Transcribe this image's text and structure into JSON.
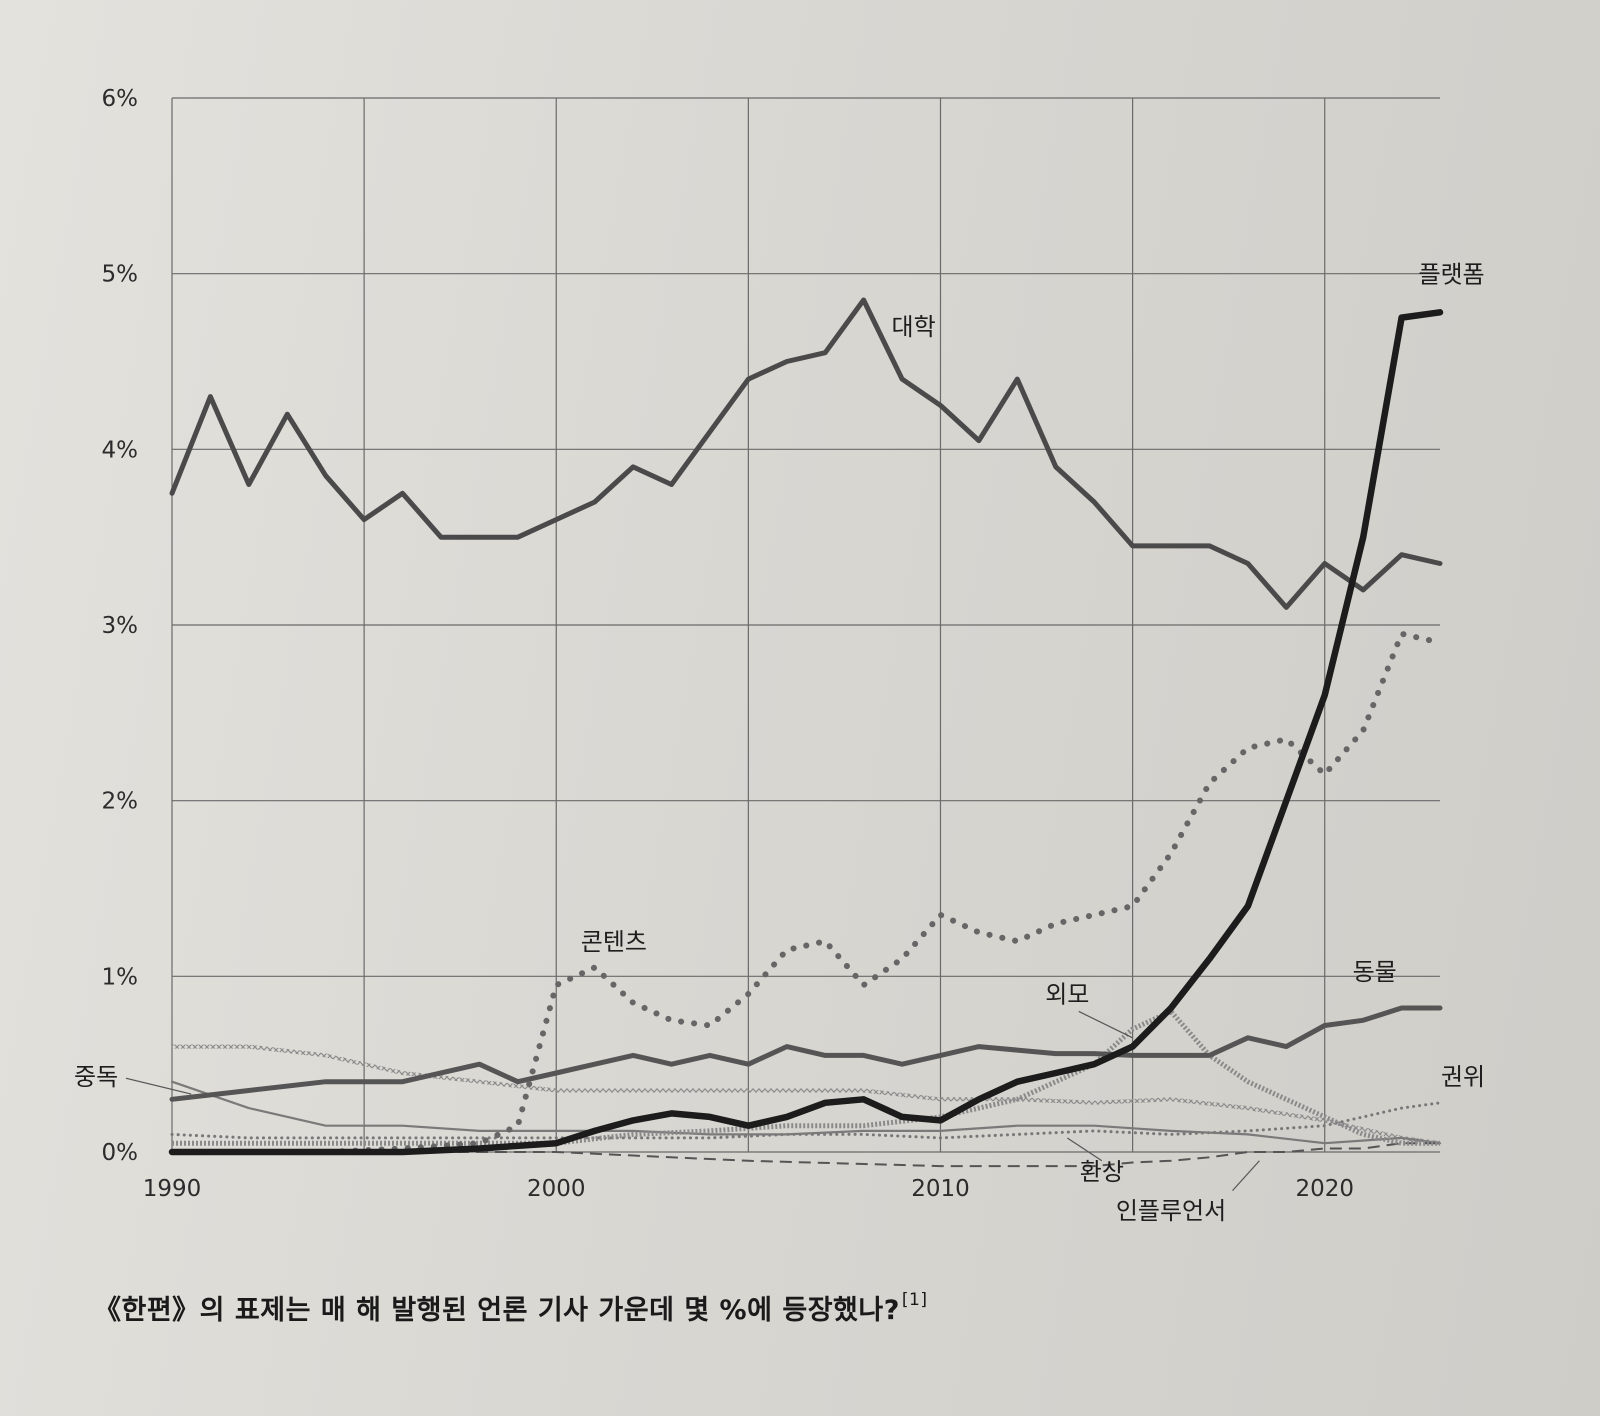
{
  "caption": {
    "text": "《한편》의 표제는 매 해 발행된 언론 기사 가운데 몇 %에 등장했나?",
    "footnote": "[1]"
  },
  "chart_data": {
    "type": "line",
    "title": "",
    "xlabel": "",
    "ylabel": "",
    "xlim": [
      1990,
      2023
    ],
    "ylim": [
      0,
      6
    ],
    "x_ticks": [
      1990,
      2000,
      2010,
      2020
    ],
    "x_tick_labels": [
      "1990",
      "2000",
      "2010",
      "2020"
    ],
    "y_ticks": [
      0,
      1,
      2,
      3,
      4,
      5,
      6
    ],
    "y_tick_labels": [
      "0%",
      "1%",
      "2%",
      "3%",
      "4%",
      "5%",
      "6%"
    ],
    "grid": true,
    "series": [
      {
        "name": "대학",
        "style": "solid",
        "color": "#4a4a4a",
        "x": [
          1990,
          1991,
          1992,
          1993,
          1994,
          1995,
          1996,
          1997,
          1998,
          1999,
          2000,
          2001,
          2002,
          2003,
          2004,
          2005,
          2006,
          2007,
          2008,
          2009,
          2010,
          2011,
          2012,
          2013,
          2014,
          2015,
          2016,
          2017,
          2018,
          2019,
          2020,
          2021,
          2022,
          2023
        ],
        "values": [
          3.75,
          4.3,
          3.8,
          4.2,
          3.85,
          3.6,
          3.75,
          3.5,
          3.5,
          3.5,
          3.6,
          3.7,
          3.9,
          3.8,
          4.1,
          4.4,
          4.5,
          4.55,
          4.85,
          4.4,
          4.25,
          4.05,
          4.4,
          3.9,
          3.7,
          3.45,
          3.45,
          3.45,
          3.35,
          3.1,
          3.35,
          3.2,
          3.4,
          3.35
        ]
      },
      {
        "name": "플랫폼",
        "style": "solid-bold",
        "color": "#1c1c1c",
        "x": [
          1990,
          1992,
          1994,
          1996,
          1998,
          2000,
          2001,
          2002,
          2003,
          2004,
          2005,
          2006,
          2007,
          2008,
          2009,
          2010,
          2011,
          2012,
          2013,
          2014,
          2015,
          2016,
          2017,
          2018,
          2019,
          2020,
          2021,
          2022,
          2023
        ],
        "values": [
          0.0,
          0.0,
          0.0,
          0.0,
          0.02,
          0.05,
          0.12,
          0.18,
          0.22,
          0.2,
          0.15,
          0.2,
          0.28,
          0.3,
          0.2,
          0.18,
          0.3,
          0.4,
          0.45,
          0.5,
          0.6,
          0.82,
          1.1,
          1.4,
          2.0,
          2.6,
          3.5,
          4.75,
          4.78
        ]
      },
      {
        "name": "콘텐츠",
        "style": "dotted-bold",
        "color": "#666666",
        "x": [
          1990,
          1992,
          1994,
          1996,
          1998,
          1999,
          2000,
          2001,
          2002,
          2003,
          2004,
          2005,
          2006,
          2007,
          2008,
          2009,
          2010,
          2011,
          2012,
          2013,
          2014,
          2015,
          2016,
          2017,
          2018,
          2019,
          2020,
          2021,
          2022,
          2023
        ],
        "values": [
          0.0,
          0.0,
          0.0,
          0.02,
          0.05,
          0.15,
          0.95,
          1.05,
          0.85,
          0.75,
          0.72,
          0.9,
          1.15,
          1.2,
          0.95,
          1.1,
          1.35,
          1.25,
          1.2,
          1.3,
          1.35,
          1.4,
          1.7,
          2.1,
          2.3,
          2.35,
          2.15,
          2.4,
          2.95,
          2.9
        ]
      },
      {
        "name": "동물",
        "style": "solid",
        "color": "#555555",
        "x": [
          1990,
          1992,
          1994,
          1996,
          1998,
          1999,
          2000,
          2001,
          2002,
          2003,
          2004,
          2005,
          2006,
          2007,
          2008,
          2009,
          2010,
          2011,
          2012,
          2013,
          2014,
          2015,
          2016,
          2017,
          2018,
          2019,
          2020,
          2021,
          2022,
          2023
        ],
        "values": [
          0.3,
          0.35,
          0.4,
          0.4,
          0.5,
          0.4,
          0.45,
          0.5,
          0.55,
          0.5,
          0.55,
          0.5,
          0.6,
          0.55,
          0.55,
          0.5,
          0.55,
          0.6,
          0.58,
          0.56,
          0.56,
          0.55,
          0.55,
          0.55,
          0.65,
          0.6,
          0.72,
          0.75,
          0.82,
          0.82
        ]
      },
      {
        "name": "외모",
        "style": "wavy",
        "color": "#8a8a8a",
        "x": [
          1990,
          1992,
          1994,
          1996,
          1998,
          2000,
          2002,
          2004,
          2006,
          2008,
          2010,
          2012,
          2014,
          2015,
          2016,
          2017,
          2018,
          2019,
          2020,
          2021,
          2022,
          2023
        ],
        "values": [
          0.05,
          0.05,
          0.05,
          0.05,
          0.05,
          0.05,
          0.1,
          0.12,
          0.15,
          0.15,
          0.2,
          0.3,
          0.5,
          0.7,
          0.8,
          0.55,
          0.4,
          0.3,
          0.2,
          0.1,
          0.05,
          0.05
        ]
      },
      {
        "name": "중독",
        "style": "solid-thin",
        "color": "#7a7a7a",
        "x": [
          1990,
          1992,
          1994,
          1996,
          1998,
          2000,
          2002,
          2004,
          2006,
          2008,
          2010,
          2012,
          2014,
          2016,
          2018,
          2020,
          2022,
          2023
        ],
        "values": [
          0.4,
          0.25,
          0.15,
          0.15,
          0.12,
          0.12,
          0.12,
          0.1,
          0.1,
          0.12,
          0.12,
          0.15,
          0.15,
          0.12,
          0.1,
          0.05,
          0.08,
          0.05
        ]
      },
      {
        "name": "권위",
        "style": "dotted",
        "color": "#777777",
        "x": [
          1990,
          1992,
          1994,
          1996,
          1998,
          2000,
          2002,
          2004,
          2006,
          2008,
          2010,
          2012,
          2014,
          2016,
          2018,
          2020,
          2022,
          2023
        ],
        "values": [
          0.1,
          0.08,
          0.08,
          0.08,
          0.08,
          0.08,
          0.08,
          0.08,
          0.1,
          0.1,
          0.08,
          0.1,
          0.12,
          0.1,
          0.12,
          0.15,
          0.25,
          0.28
        ]
      },
      {
        "name": "환상",
        "style": "crosshatch",
        "color": "#8c8c8c",
        "x": [
          1990,
          1992,
          1994,
          1996,
          1998,
          2000,
          2002,
          2004,
          2006,
          2008,
          2010,
          2012,
          2014,
          2016,
          2018,
          2020,
          2022,
          2023
        ],
        "values": [
          0.6,
          0.6,
          0.55,
          0.45,
          0.4,
          0.35,
          0.35,
          0.35,
          0.35,
          0.35,
          0.3,
          0.3,
          0.28,
          0.3,
          0.25,
          0.18,
          0.08,
          0.05
        ]
      },
      {
        "name": "인플루언서",
        "style": "dashed",
        "color": "#555555",
        "x": [
          1990,
          1995,
          2000,
          2005,
          2010,
          2012,
          2014,
          2015,
          2016,
          2017,
          2018,
          2019,
          2020,
          2021,
          2022,
          2023
        ],
        "values": [
          0.0,
          0.0,
          0.0,
          -0.05,
          -0.08,
          -0.08,
          -0.08,
          -0.06,
          -0.05,
          -0.03,
          0.0,
          0.0,
          0.02,
          0.02,
          0.05,
          0.05
        ]
      }
    ]
  }
}
